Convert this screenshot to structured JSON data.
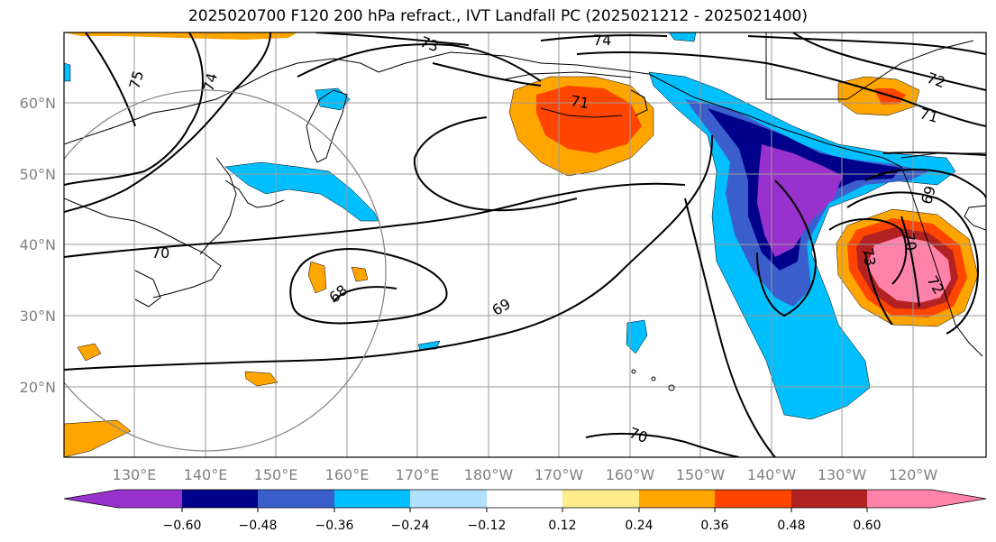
{
  "title": "2025020700 F120 200 hPa refract., IVT Landfall PC (2025021212 - 2025021400)",
  "lat_labels": [
    "60°N",
    "50°N",
    "40°N",
    "30°N",
    "20°N"
  ],
  "lon_labels": [
    "130°E",
    "140°E",
    "150°E",
    "160°E",
    "170°E",
    "180°W",
    "170°W",
    "160°W",
    "150°W",
    "140°W",
    "130°W",
    "120°W"
  ],
  "contour_labels": [
    "75",
    "74",
    "73",
    "74",
    "71",
    "72",
    "71",
    "70",
    "68",
    "69",
    "69",
    "70",
    "70",
    "73",
    "72"
  ],
  "colorbar": {
    "colors": [
      "#9932cc",
      "#00008b",
      "#3a5fcd",
      "#00bfff",
      "#b0e2ff",
      "#ffffff",
      "#ffec8b",
      "#ffa500",
      "#ff4500",
      "#b22222",
      "#ff82ab"
    ],
    "tick_labels": [
      "−0.60",
      "−0.48",
      "−0.36",
      "−0.24",
      "−0.12",
      "0.12",
      "0.24",
      "0.36",
      "0.48",
      "0.60"
    ]
  }
}
